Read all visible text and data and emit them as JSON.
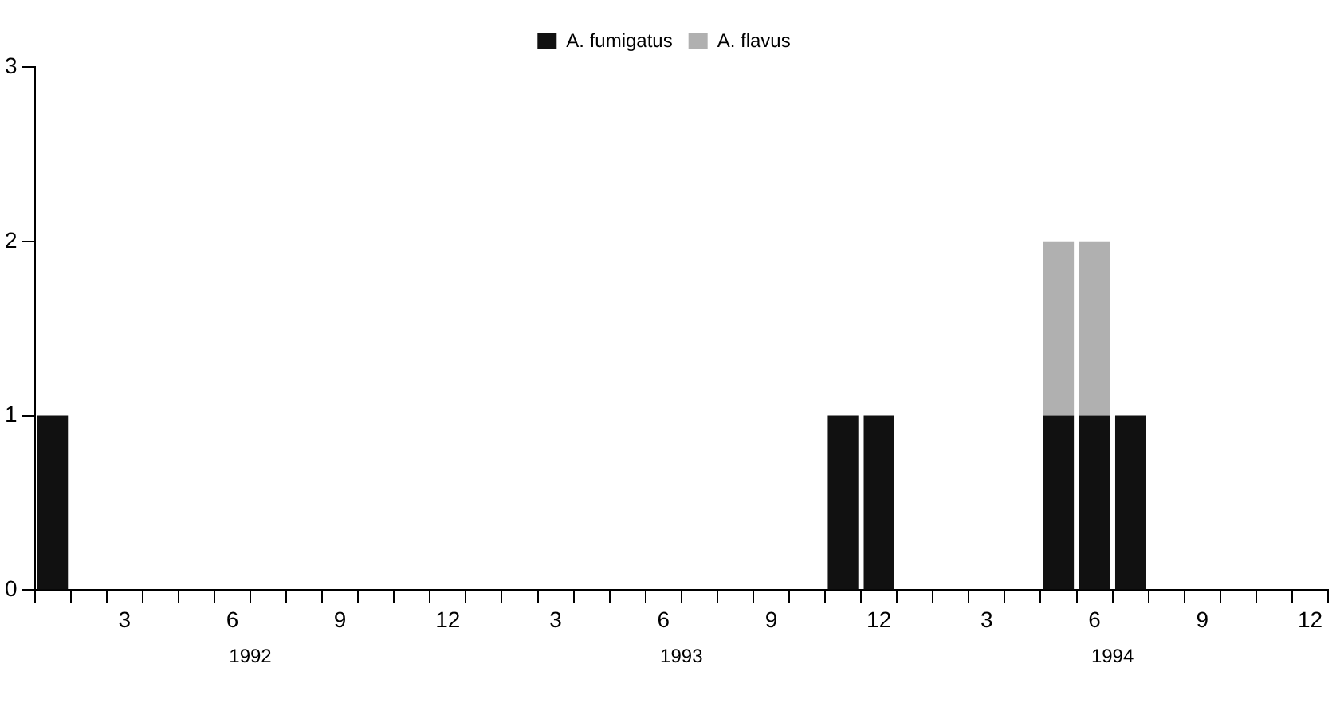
{
  "chart_data": {
    "type": "bar",
    "stacked": true,
    "legend": "top",
    "grid": false,
    "categories": [
      null,
      null,
      "3",
      null,
      null,
      "6",
      null,
      null,
      "9",
      null,
      null,
      "12",
      null,
      null,
      "3",
      null,
      null,
      "6",
      null,
      null,
      "9",
      null,
      null,
      "12",
      null,
      null,
      "3",
      null,
      null,
      "6",
      null,
      null,
      "9",
      null,
      null,
      "12"
    ],
    "series": [
      {
        "name": "A. fumigatus",
        "color": "#111111",
        "values": [
          1,
          0,
          0,
          0,
          0,
          0,
          0,
          0,
          0,
          0,
          0,
          0,
          0,
          0,
          0,
          0,
          0,
          0,
          0,
          0,
          0,
          0,
          1,
          1,
          0,
          0,
          0,
          0,
          1,
          1,
          1,
          0,
          0,
          0,
          0,
          0
        ]
      },
      {
        "name": "A. flavus",
        "color": "#b0b0b0",
        "values": [
          0,
          0,
          0,
          0,
          0,
          0,
          0,
          0,
          0,
          0,
          0,
          0,
          0,
          0,
          0,
          0,
          0,
          0,
          0,
          0,
          0,
          0,
          0,
          0,
          0,
          0,
          0,
          0,
          1,
          1,
          0,
          0,
          0,
          0,
          0,
          0
        ]
      }
    ],
    "ylim": [
      0,
      3
    ],
    "yticks": [
      0,
      1,
      2,
      3
    ],
    "annotations": [
      "1992",
      "1993",
      "1994"
    ]
  }
}
